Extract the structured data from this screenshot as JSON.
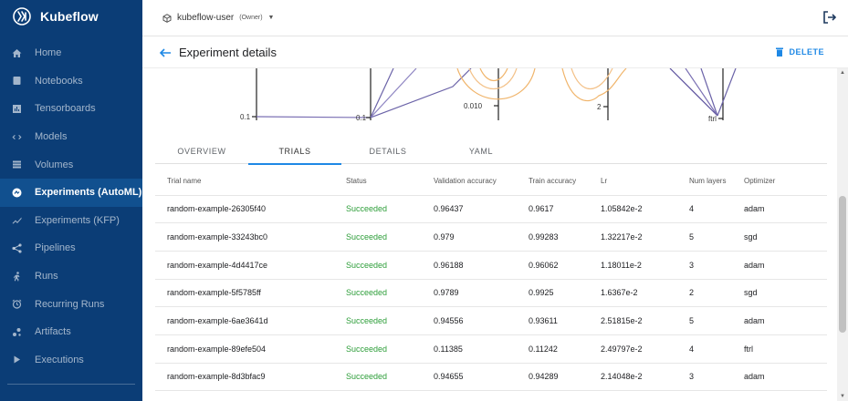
{
  "app": {
    "name": "Kubeflow"
  },
  "sidebar": {
    "items": [
      {
        "label": "Home",
        "icon": "home-icon",
        "active": false
      },
      {
        "label": "Notebooks",
        "icon": "notebook-icon",
        "active": false
      },
      {
        "label": "Tensorboards",
        "icon": "tensorboard-icon",
        "active": false
      },
      {
        "label": "Models",
        "icon": "models-icon",
        "active": false
      },
      {
        "label": "Volumes",
        "icon": "volumes-icon",
        "active": false
      },
      {
        "label": "Experiments (AutoML)",
        "icon": "automl-icon",
        "active": true
      },
      {
        "label": "Experiments (KFP)",
        "icon": "kfp-icon",
        "active": false
      },
      {
        "label": "Pipelines",
        "icon": "pipelines-icon",
        "active": false
      },
      {
        "label": "Runs",
        "icon": "runs-icon",
        "active": false
      },
      {
        "label": "Recurring Runs",
        "icon": "recurring-runs-icon",
        "active": false
      },
      {
        "label": "Artifacts",
        "icon": "artifacts-icon",
        "active": false
      },
      {
        "label": "Executions",
        "icon": "executions-icon",
        "active": false
      }
    ]
  },
  "topbar": {
    "namespace": "kubeflow-user",
    "role": "(Owner)"
  },
  "header": {
    "title": "Experiment details",
    "delete_label": "DELETE"
  },
  "chart": {
    "tick_left_1": "0.1",
    "tick_left_2": "0.1",
    "tick_lr": "0.010",
    "tick_layers": "2",
    "tick_opt": "ftrl"
  },
  "tabs": [
    {
      "label": "OVERVIEW",
      "active": false
    },
    {
      "label": "TRIALS",
      "active": true
    },
    {
      "label": "DETAILS",
      "active": false
    },
    {
      "label": "YAML",
      "active": false
    }
  ],
  "table": {
    "headers": [
      "Trial name",
      "Status",
      "Validation accuracy",
      "Train accuracy",
      "Lr",
      "Num layers",
      "Optimizer"
    ],
    "rows": [
      [
        "random-example-26305f40",
        "Succeeded",
        "0.96437",
        "0.9617",
        "1.05842e-2",
        "4",
        "adam"
      ],
      [
        "random-example-33243bc0",
        "Succeeded",
        "0.979",
        "0.99283",
        "1.32217e-2",
        "5",
        "sgd"
      ],
      [
        "random-example-4d4417ce",
        "Succeeded",
        "0.96188",
        "0.96062",
        "1.18011e-2",
        "3",
        "adam"
      ],
      [
        "random-example-5f5785ff",
        "Succeeded",
        "0.9789",
        "0.9925",
        "1.6367e-2",
        "2",
        "sgd"
      ],
      [
        "random-example-6ae3641d",
        "Succeeded",
        "0.94556",
        "0.93611",
        "2.51815e-2",
        "5",
        "adam"
      ],
      [
        "random-example-89efe504",
        "Succeeded",
        "0.11385",
        "0.11242",
        "2.49797e-2",
        "4",
        "ftrl"
      ],
      [
        "random-example-8d3bfac9",
        "Succeeded",
        "0.94655",
        "0.94289",
        "2.14048e-2",
        "3",
        "adam"
      ]
    ]
  },
  "colors": {
    "sidebar": "#0b3d76",
    "sidebar_active": "#11508f",
    "accent": "#1e88e5",
    "success": "#2e9e3a"
  }
}
